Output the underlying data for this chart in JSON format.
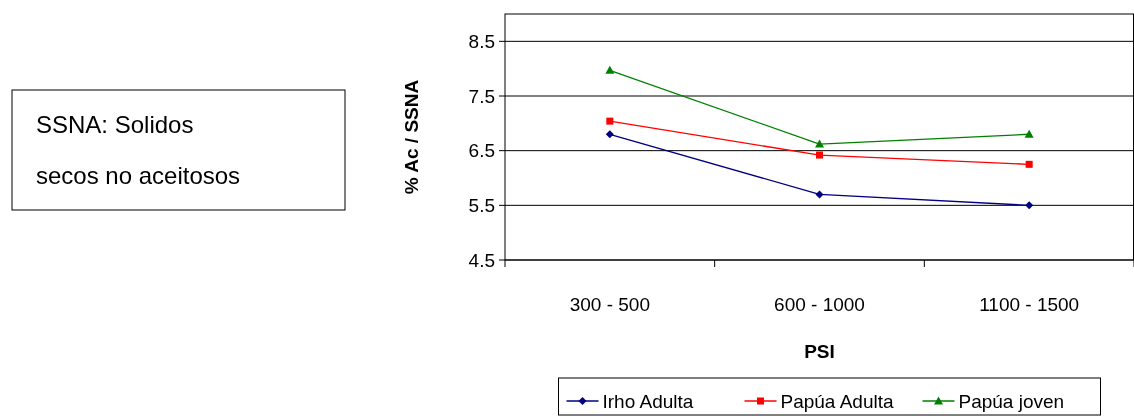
{
  "chart_data": {
    "type": "line",
    "xlabel": "PSI",
    "ylabel": "% Ac / SSNA",
    "categories": [
      "300 - 500",
      "600 - 1000",
      "1100 - 1500"
    ],
    "series": [
      {
        "name": "Irho Adulta",
        "color": "#000080",
        "values": [
          6.8,
          5.7,
          5.5
        ],
        "marker": "diamond"
      },
      {
        "name": "Papúa Adulta",
        "color": "#ff0000",
        "values": [
          7.04,
          6.42,
          6.25
        ],
        "marker": "square"
      },
      {
        "name": "Papúa joven",
        "color": "#008000",
        "values": [
          7.97,
          6.62,
          6.8
        ],
        "marker": "triangle"
      }
    ],
    "ylim": [
      4.5,
      9
    ],
    "yticks": [
      4.5,
      5.5,
      6.5,
      7.5,
      8.5
    ],
    "grid": "y",
    "legend": "bottom",
    "annotations": [
      "SSNA: Solidos secos no aceitosos"
    ]
  }
}
